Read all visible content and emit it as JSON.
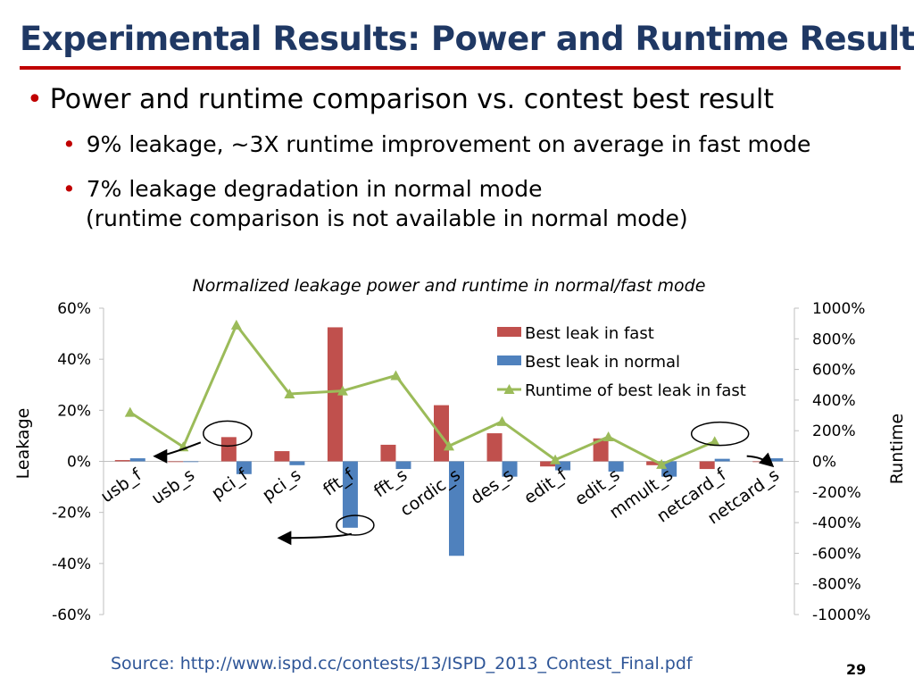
{
  "slide": {
    "title": "Experimental Results: Power and Runtime Result",
    "bullets": [
      "Power and runtime comparison vs. contest best result",
      "9% leakage, ~3X runtime improvement on average in fast mode",
      "7% leakage degradation in normal mode",
      "(runtime comparison is not available in normal mode)"
    ],
    "source": "Source: http://www.ispd.cc/contests/13/ISPD_2013_Contest_Final.pdf",
    "page_number": "29"
  },
  "chart_data": {
    "type": "bar",
    "title": "Normalized leakage power and runtime in normal/fast mode",
    "categories": [
      "usb_f",
      "usb_s",
      "pci_f",
      "pci_s",
      "fft_f",
      "fft_s",
      "cordic_s",
      "des_s",
      "edit_f",
      "edit_s",
      "mmult_s",
      "netcard_f",
      "netcard_s"
    ],
    "ylabel": "Leakage",
    "y2label": "Runtime",
    "ylim": [
      -60,
      60
    ],
    "y_ticks": [
      "60%",
      "40%",
      "20%",
      "0%",
      "-20%",
      "-40%",
      "-60%"
    ],
    "y2lim": [
      -1000,
      1000
    ],
    "y2_ticks": [
      "1000%",
      "800%",
      "600%",
      "400%",
      "200%",
      "0%",
      "-200%",
      "-400%",
      "-600%",
      "-800%",
      "-1000%"
    ],
    "legend_position": "top-right",
    "series": [
      {
        "name": "Best leak in fast",
        "type": "bar",
        "axis": "left",
        "color": "#c0504d",
        "values": [
          0.5,
          0,
          9.5,
          4,
          52.5,
          6.5,
          22,
          11,
          -2,
          9,
          -1.5,
          -3,
          0
        ]
      },
      {
        "name": "Best leak in normal",
        "type": "bar",
        "axis": "left",
        "color": "#4f81bd",
        "values": [
          1.2,
          0,
          -5,
          -1.5,
          -26,
          -3,
          -37,
          -6,
          -3.5,
          -4,
          -6,
          1,
          1.2
        ]
      },
      {
        "name": "Runtime of best leak in fast",
        "type": "line",
        "axis": "right",
        "color": "#9bbb59",
        "values": [
          320,
          95,
          890,
          440,
          460,
          560,
          100,
          260,
          10,
          160,
          -20,
          130,
          null
        ]
      }
    ]
  }
}
